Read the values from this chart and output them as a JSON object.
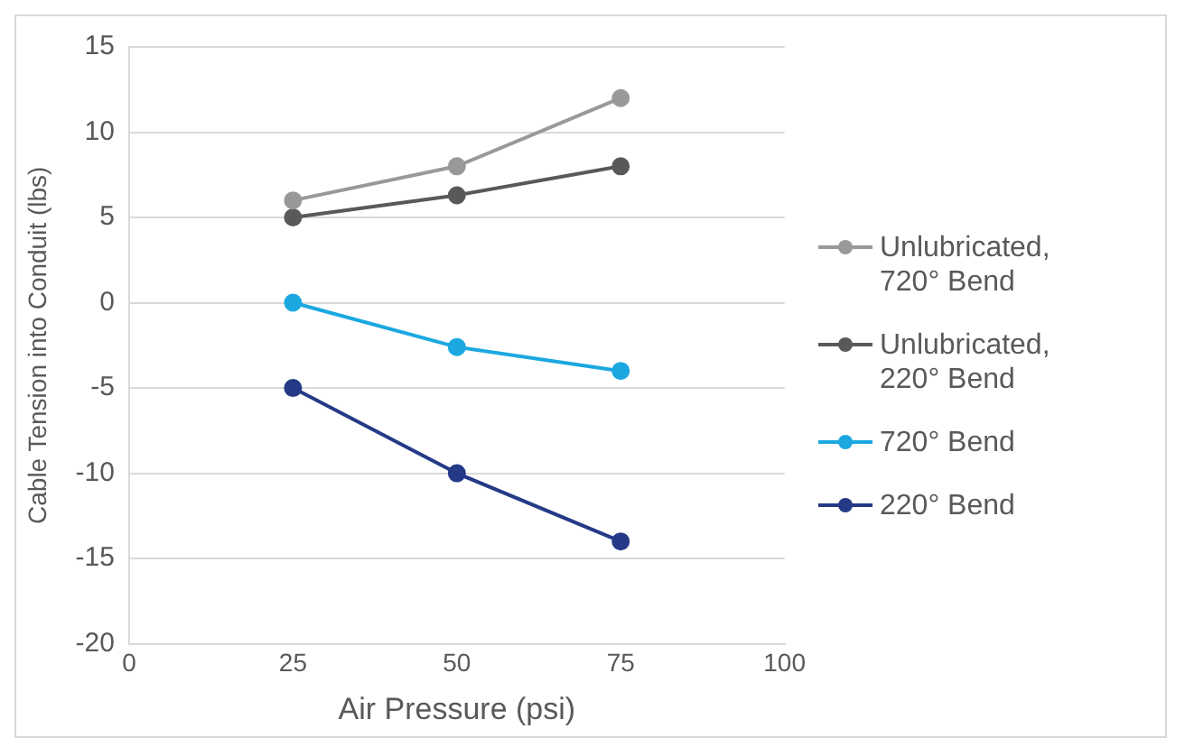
{
  "chart_data": {
    "type": "line",
    "xlabel": "Air Pressure (psi)",
    "ylabel": "Cable Tension into Conduit (lbs)",
    "x": [
      25,
      50,
      75
    ],
    "series": [
      {
        "name": "Unlubricated, 720° Bend",
        "color": "#999999",
        "values": [
          6,
          8,
          12
        ]
      },
      {
        "name": "Unlubricated, 220° Bend",
        "color": "#595959",
        "values": [
          5,
          6.3,
          8
        ]
      },
      {
        "name": "720° Bend",
        "color": "#1ba8e0",
        "values": [
          0,
          -2.6,
          -4
        ]
      },
      {
        "name": "220° Bend",
        "color": "#253a87",
        "values": [
          -5,
          -10,
          -14
        ]
      }
    ],
    "xlim": [
      0,
      100
    ],
    "xticks": [
      0,
      25,
      50,
      75,
      100
    ],
    "ylim": [
      -20,
      15
    ],
    "yticks": [
      -20,
      -15,
      -10,
      -5,
      0,
      5,
      10,
      15
    ],
    "grid": "y",
    "legend": "right",
    "marker": "circle",
    "line_style": "solid"
  }
}
